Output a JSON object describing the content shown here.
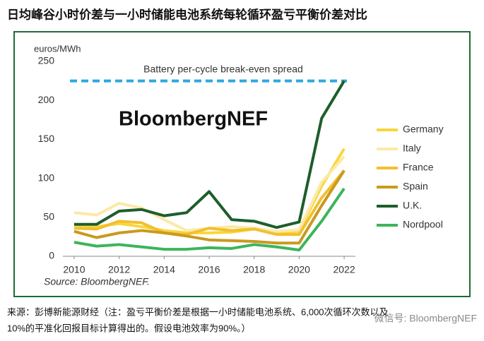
{
  "chart_data": {
    "type": "line",
    "title": "日均峰谷小时价差与一小时储能电池系统每轮循环盈亏平衡价差对比",
    "y_label": "euros/MWh",
    "source": "Source: BloombergNEF.",
    "watermark": "BloombergNEF",
    "x": [
      2010,
      2011,
      2012,
      2013,
      2014,
      2015,
      2016,
      2017,
      2018,
      2019,
      2020,
      2021,
      2022
    ],
    "xlim": [
      2009.5,
      2022.5
    ],
    "xticks": [
      2010,
      2012,
      2014,
      2016,
      2018,
      2020,
      2022
    ],
    "ylim": [
      0,
      250
    ],
    "yticks": [
      0,
      50,
      100,
      150,
      200,
      250
    ],
    "grid": false,
    "legend": "right",
    "reference_line": {
      "value": 225,
      "label": "Battery per-cycle break-even spread",
      "color": "#2ea8df"
    },
    "series": [
      {
        "name": "Germany",
        "color": "#f7d73a",
        "values": [
          40,
          38,
          42,
          38,
          33,
          30,
          30,
          31,
          35,
          30,
          32,
          90,
          138
        ]
      },
      {
        "name": "Italy",
        "color": "#fbeaa6",
        "values": [
          56,
          53,
          68,
          62,
          47,
          33,
          36,
          38,
          36,
          32,
          34,
          95,
          128
        ]
      },
      {
        "name": "France",
        "color": "#f2bf2f",
        "values": [
          36,
          35,
          45,
          43,
          30,
          28,
          36,
          33,
          35,
          28,
          28,
          75,
          110
        ]
      },
      {
        "name": "Spain",
        "color": "#c99a1e",
        "values": [
          32,
          24,
          30,
          33,
          30,
          26,
          21,
          20,
          19,
          17,
          17,
          65,
          110
        ]
      },
      {
        "name": "U.K.",
        "color": "#1e5e2b",
        "values": [
          41,
          41,
          58,
          60,
          52,
          56,
          83,
          47,
          45,
          37,
          44,
          177,
          225
        ]
      },
      {
        "name": "Nordpool",
        "color": "#3cb55a",
        "values": [
          18,
          13,
          15,
          12,
          9,
          9,
          11,
          10,
          15,
          12,
          8,
          45,
          87
        ]
      }
    ]
  },
  "footnote": [
    "来源：彭博新能源财经（注：盈亏平衡价差是根据一小时储能电池系统、6,000次循环次数以及",
    "10%的平准化回报目标计算得出的。假设电池效率为90%。）"
  ],
  "wechat": "微信号: BloombergNEF"
}
